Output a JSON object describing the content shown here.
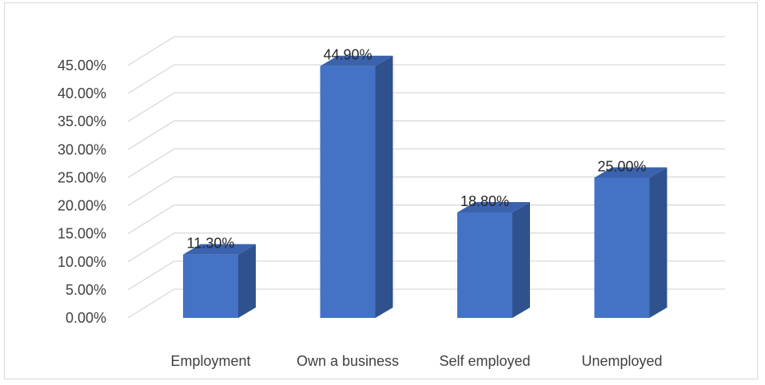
{
  "chart_data": {
    "type": "bar",
    "style": "3d-column",
    "categories": [
      "Employment",
      "Own a business",
      "Self employed",
      "Unemployed"
    ],
    "values": [
      11.3,
      44.9,
      18.8,
      25.0
    ],
    "data_labels": [
      "11.30%",
      "44.90%",
      "18.80%",
      "25.00%"
    ],
    "ylim": [
      0,
      45
    ],
    "y_ticks": [
      0,
      5,
      10,
      15,
      20,
      25,
      30,
      35,
      40,
      45
    ],
    "y_tick_labels": [
      "0.00%",
      "5.00%",
      "10.00%",
      "15.00%",
      "20.00%",
      "25.00%",
      "30.00%",
      "35.00%",
      "40.00%",
      "45.00%"
    ],
    "title": "",
    "xlabel": "",
    "ylabel": "",
    "grid": true,
    "legend": "none",
    "colors": {
      "bar_front": "#4472c4",
      "bar_side": "#2f528f",
      "bar_top": "#3a62ad",
      "gridline": "#d9d9d9",
      "text": "#404040",
      "frame": "#d9d9d9"
    }
  }
}
